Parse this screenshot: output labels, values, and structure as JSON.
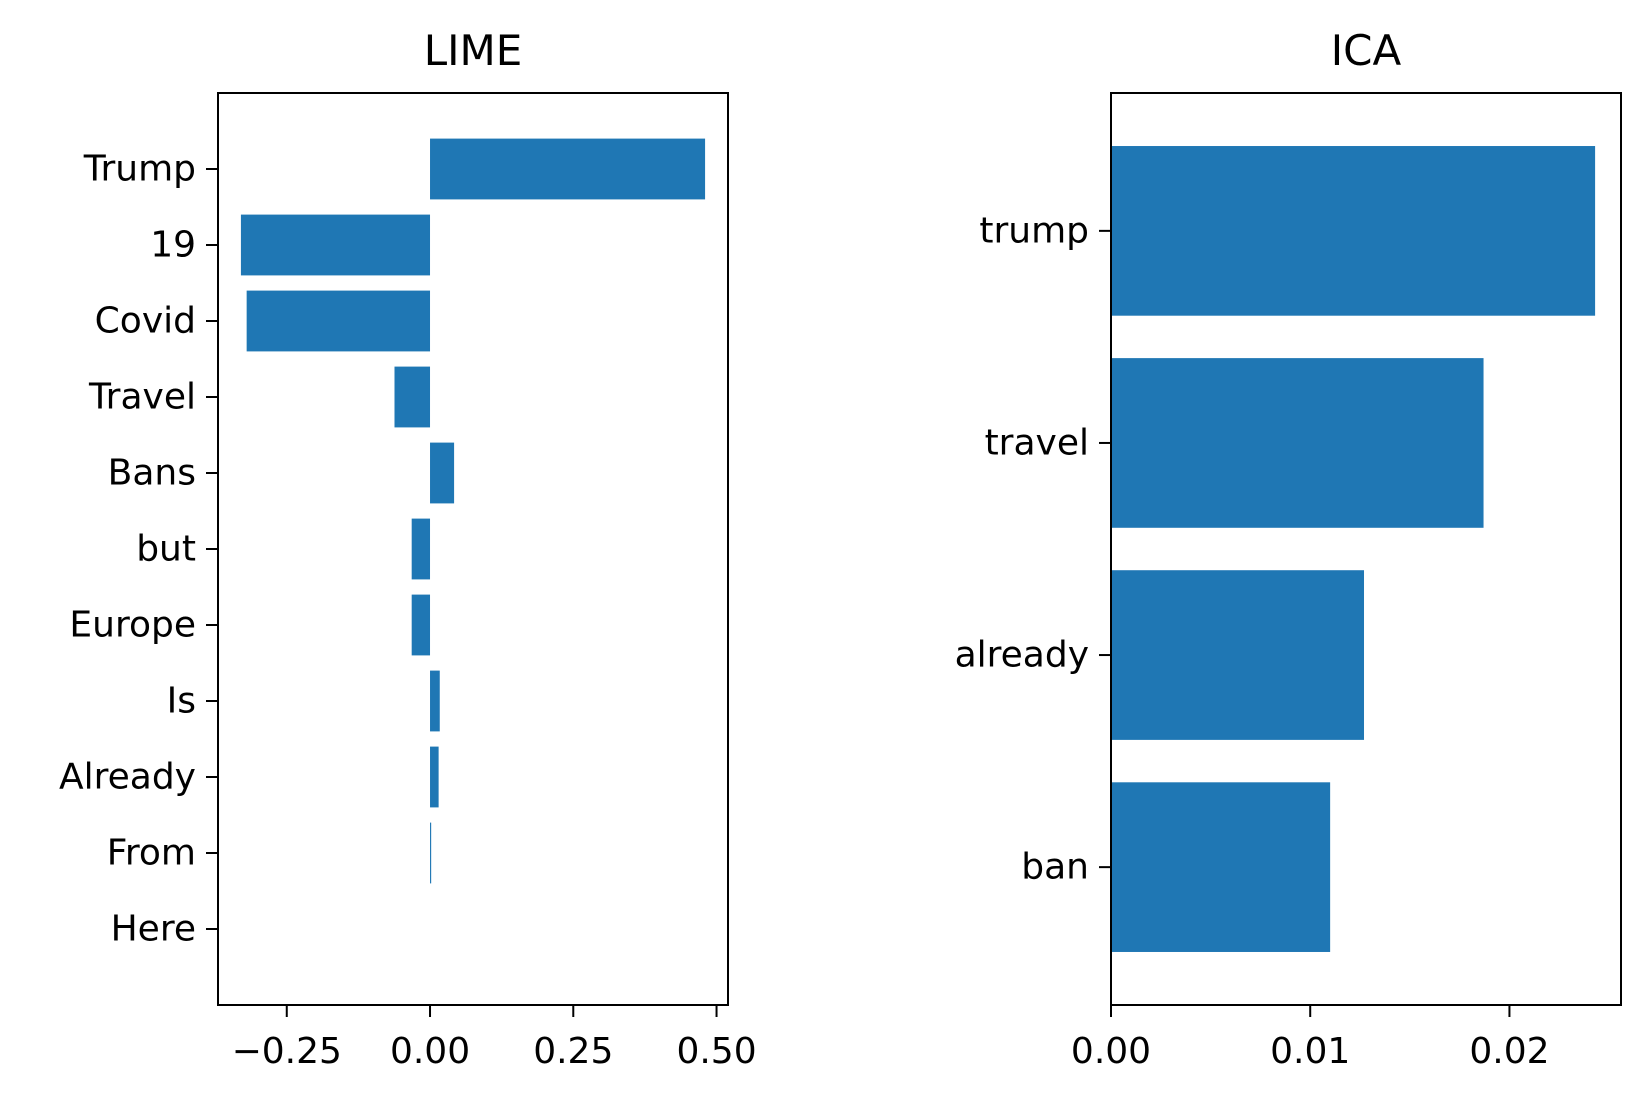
{
  "chart_data": [
    {
      "type": "bar",
      "orientation": "horizontal",
      "title": "LIME",
      "xlabel": "",
      "ylabel": "",
      "categories": [
        "Trump",
        "19",
        "Covid",
        "Travel",
        "Bans",
        "but",
        "Europe",
        "Is",
        "Already",
        "From",
        "Here"
      ],
      "values": [
        0.48,
        -0.33,
        -0.32,
        -0.062,
        0.042,
        -0.032,
        -0.032,
        0.017,
        0.015,
        0.002,
        0.0
      ],
      "xlim": [
        -0.37,
        0.52
      ],
      "xticks": [
        -0.25,
        0.0,
        0.25,
        0.5
      ],
      "xtick_labels": [
        "−0.25",
        "0.00",
        "0.25",
        "0.50"
      ],
      "color": "#1f77b4",
      "grid": false,
      "legend": false
    },
    {
      "type": "bar",
      "orientation": "horizontal",
      "title": "ICA",
      "xlabel": "",
      "ylabel": "",
      "categories": [
        "trump",
        "travel",
        "already",
        "ban"
      ],
      "values": [
        0.0243,
        0.0187,
        0.0127,
        0.011
      ],
      "xlim": [
        0.0,
        0.0256
      ],
      "xticks": [
        0.0,
        0.01,
        0.02
      ],
      "xtick_labels": [
        "0.00",
        "0.01",
        "0.02"
      ],
      "color": "#1f77b4",
      "grid": false,
      "legend": false
    }
  ]
}
